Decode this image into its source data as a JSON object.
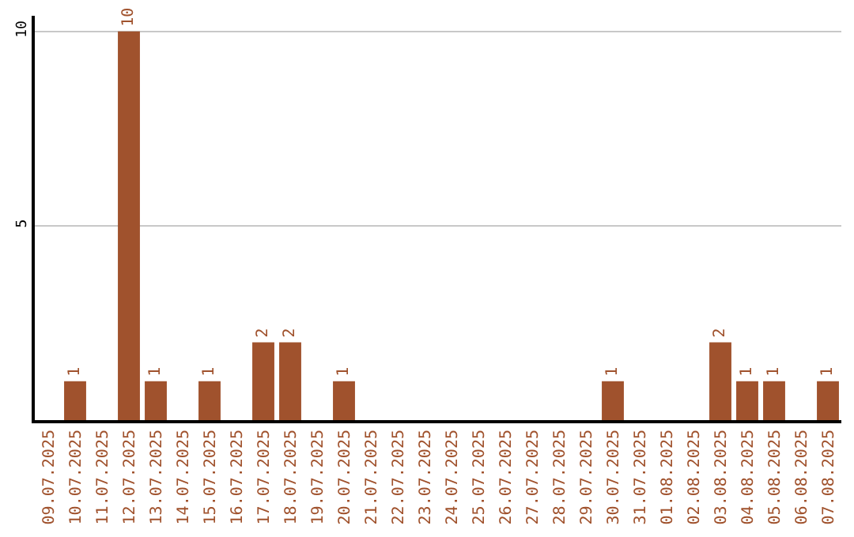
{
  "chart_data": {
    "type": "bar",
    "categories": [
      "09.07.2025",
      "10.07.2025",
      "11.07.2025",
      "12.07.2025",
      "13.07.2025",
      "14.07.2025",
      "15.07.2025",
      "16.07.2025",
      "17.07.2025",
      "18.07.2025",
      "19.07.2025",
      "20.07.2025",
      "21.07.2025",
      "22.07.2025",
      "23.07.2025",
      "24.07.2025",
      "25.07.2025",
      "26.07.2025",
      "27.07.2025",
      "28.07.2025",
      "29.07.2025",
      "30.07.2025",
      "31.07.2025",
      "01.08.2025",
      "02.08.2025",
      "03.08.2025",
      "04.08.2025",
      "05.08.2025",
      "06.08.2025",
      "07.08.2025"
    ],
    "values": [
      0,
      1,
      0,
      10,
      1,
      0,
      1,
      0,
      2,
      2,
      0,
      1,
      0,
      0,
      0,
      0,
      0,
      0,
      0,
      0,
      0,
      1,
      0,
      0,
      0,
      2,
      1,
      1,
      0,
      1
    ],
    "value_labels": [
      null,
      "1",
      null,
      "10",
      "1",
      null,
      "1",
      null,
      "2",
      "2",
      null,
      "1",
      null,
      null,
      null,
      null,
      null,
      null,
      null,
      null,
      null,
      "1",
      null,
      null,
      null,
      "2",
      "1",
      "1",
      null,
      "1"
    ],
    "color": "#a0522d",
    "ylim": [
      0,
      10.4
    ],
    "yticks": [
      5,
      10
    ],
    "grid": "y",
    "legend": false
  }
}
